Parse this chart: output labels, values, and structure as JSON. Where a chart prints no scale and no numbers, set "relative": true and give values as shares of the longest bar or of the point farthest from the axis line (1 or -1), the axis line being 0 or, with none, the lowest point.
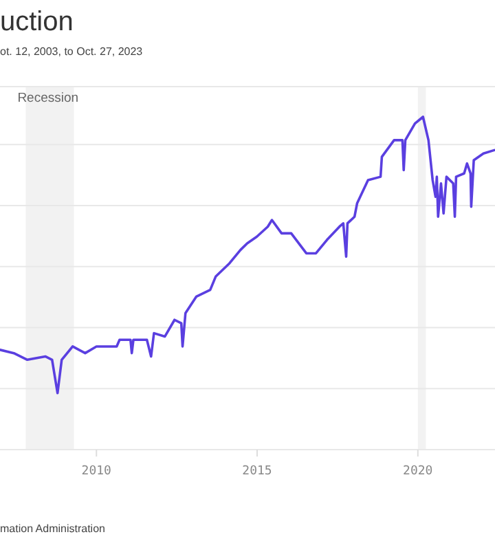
{
  "chart_data": {
    "type": "line",
    "title": "uction",
    "subtitle": "ot. 12, 2003, to Oct. 27, 2023",
    "annotations": [
      "mation Administration"
    ],
    "relative": true,
    "grid": "y",
    "xlim": [
      2007.0,
      2022.4
    ],
    "xticks": [
      2010,
      2015,
      2020
    ],
    "bands": [
      {
        "axis": "x",
        "from": 2007.8,
        "to": 2009.3,
        "label": "Recession",
        "color": "#f2f2f2"
      },
      {
        "axis": "x",
        "from": 2020.0,
        "to": 2020.25,
        "label": null,
        "color": "#f2f2f2"
      }
    ],
    "series": [
      {
        "color": "#5a3fe0",
        "x": [
          2007.0,
          2007.43,
          2007.85,
          2008.41,
          2008.62,
          2008.79,
          2008.92,
          2009.26,
          2009.65,
          2010.0,
          2010.63,
          2010.72,
          2011.06,
          2011.1,
          2011.15,
          2011.57,
          2011.7,
          2011.79,
          2012.13,
          2012.43,
          2012.64,
          2012.68,
          2012.77,
          2013.11,
          2013.54,
          2013.71,
          2014.14,
          2014.48,
          2014.69,
          2014.99,
          2015.33,
          2015.46,
          2015.76,
          2016.06,
          2016.53,
          2016.83,
          2017.17,
          2017.56,
          2017.68,
          2017.77,
          2017.81,
          2018.03,
          2018.11,
          2018.45,
          2018.84,
          2018.88,
          2019.26,
          2019.52,
          2019.56,
          2019.61,
          2019.91,
          2020.16,
          2020.33,
          2020.46,
          2020.55,
          2020.59,
          2020.63,
          2020.72,
          2020.8,
          2020.89,
          2021.1,
          2021.15,
          2021.19,
          2021.44,
          2021.53,
          2021.64,
          2021.66,
          2021.74,
          2022.04,
          2022.38
        ],
        "values": [
          0.3,
          0.29,
          0.27,
          0.28,
          0.27,
          0.17,
          0.27,
          0.31,
          0.29,
          0.31,
          0.31,
          0.33,
          0.33,
          0.29,
          0.33,
          0.33,
          0.28,
          0.35,
          0.34,
          0.39,
          0.38,
          0.31,
          0.41,
          0.46,
          0.48,
          0.52,
          0.56,
          0.6,
          0.62,
          0.64,
          0.67,
          0.69,
          0.65,
          0.65,
          0.59,
          0.59,
          0.63,
          0.67,
          0.68,
          0.58,
          0.68,
          0.7,
          0.74,
          0.81,
          0.82,
          0.88,
          0.93,
          0.93,
          0.84,
          0.93,
          0.98,
          1,
          0.93,
          0.81,
          0.76,
          0.82,
          0.7,
          0.8,
          0.71,
          0.82,
          0.8,
          0.7,
          0.82,
          0.83,
          0.86,
          0.83,
          0.73,
          0.87,
          0.89,
          0.9
        ]
      }
    ]
  }
}
